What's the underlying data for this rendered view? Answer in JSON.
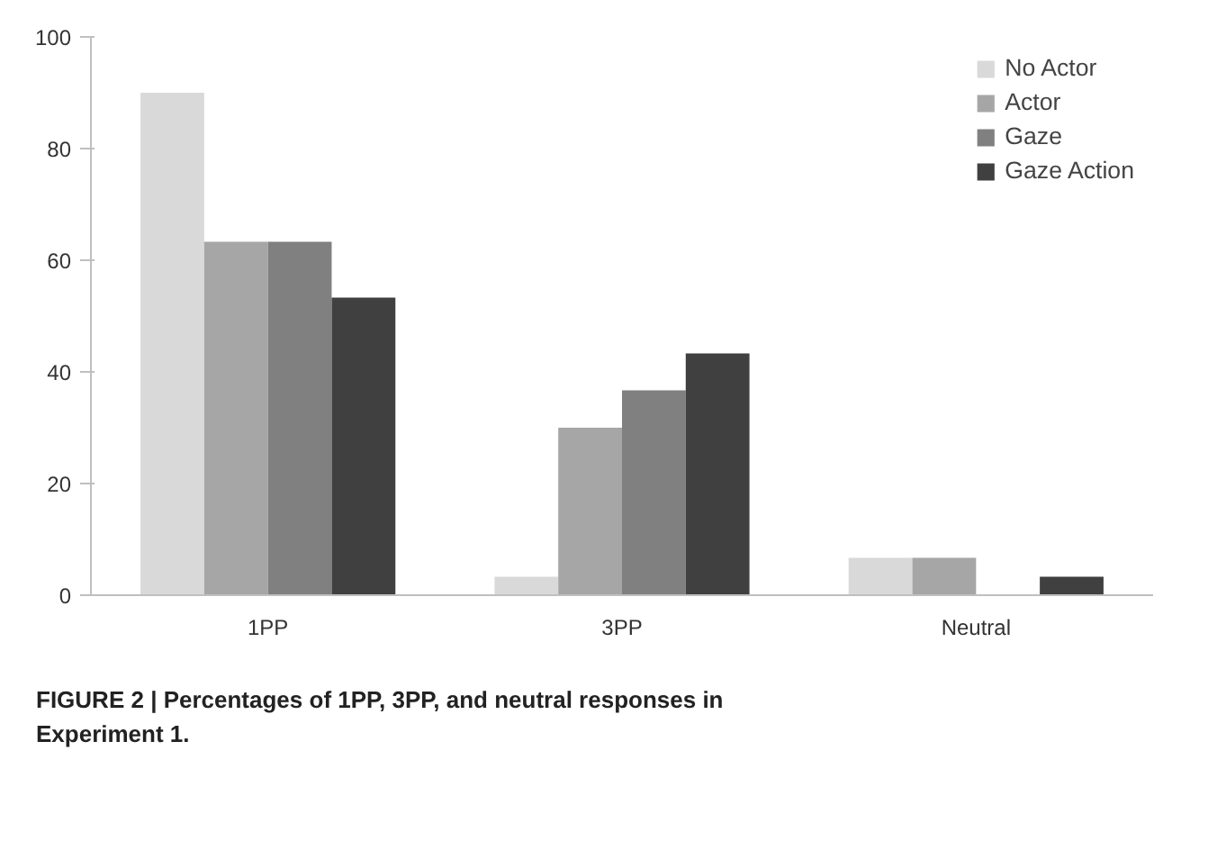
{
  "chart_data": {
    "type": "bar",
    "categories": [
      "1PP",
      "3PP",
      "Neutral"
    ],
    "series": [
      {
        "name": "No Actor",
        "color": "#d9d9d9",
        "values": [
          90,
          3.3,
          6.7
        ]
      },
      {
        "name": "Actor",
        "color": "#a6a6a6",
        "values": [
          63.3,
          30,
          6.7
        ]
      },
      {
        "name": "Gaze",
        "color": "#808080",
        "values": [
          63.3,
          36.7,
          0
        ]
      },
      {
        "name": "Gaze Action",
        "color": "#404040",
        "values": [
          53.3,
          43.3,
          3.3
        ]
      }
    ],
    "ylim": [
      0,
      100
    ],
    "yticks": [
      0,
      20,
      40,
      60,
      80,
      100
    ],
    "grid": false,
    "legend": "top right",
    "annotations": [
      "FIGURE 2 | Percentages of 1PP, 3PP, and neutral responses in Experiment 1."
    ]
  }
}
